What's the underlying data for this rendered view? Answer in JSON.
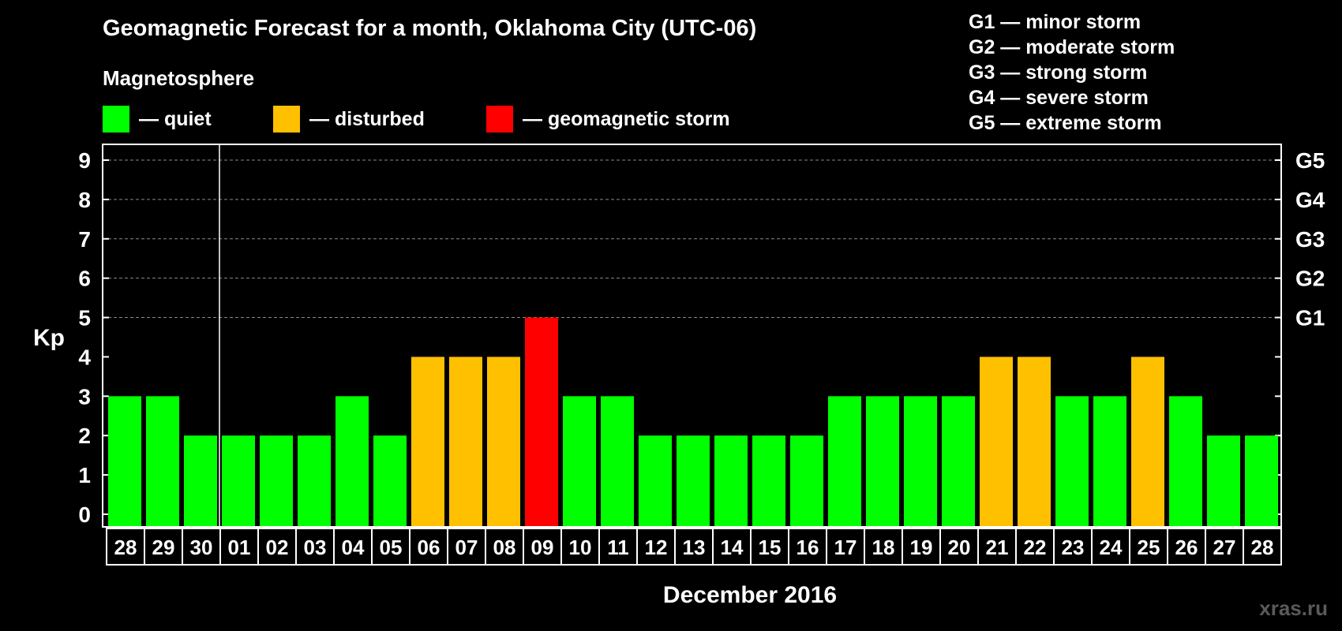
{
  "title": "Geomagnetic Forecast for a month, Oklahoma City (UTC-06)",
  "subtitle": "Magnetosphere",
  "legend": [
    {
      "label": "— quiet",
      "color": "#00ff00"
    },
    {
      "label": "— disturbed",
      "color": "#ffc000"
    },
    {
      "label": "— geomagnetic storm",
      "color": "#ff0000"
    }
  ],
  "storm_scale": [
    "G1 — minor storm",
    "G2 — moderate storm",
    "G3 — strong storm",
    "G4 — severe storm",
    "G5 — extreme storm"
  ],
  "watermark": "xras.ru",
  "chart_data": {
    "type": "bar",
    "title": "Geomagnetic Forecast for a month, Oklahoma City (UTC-06)",
    "xlabel": "December 2016",
    "ylabel": "Kp",
    "ylim": [
      0,
      9
    ],
    "yticks": [
      0,
      1,
      2,
      3,
      4,
      5,
      6,
      7,
      8,
      9
    ],
    "right_axis_labels": [
      {
        "kp": 5,
        "label": "G1"
      },
      {
        "kp": 6,
        "label": "G2"
      },
      {
        "kp": 7,
        "label": "G3"
      },
      {
        "kp": 8,
        "label": "G4"
      },
      {
        "kp": 9,
        "label": "G5"
      }
    ],
    "categories": [
      "28",
      "29",
      "30",
      "01",
      "02",
      "03",
      "04",
      "05",
      "06",
      "07",
      "08",
      "09",
      "10",
      "11",
      "12",
      "13",
      "14",
      "15",
      "16",
      "17",
      "18",
      "19",
      "20",
      "21",
      "22",
      "23",
      "24",
      "25",
      "26",
      "27",
      "28"
    ],
    "values": [
      3,
      3,
      2,
      2,
      2,
      2,
      3,
      2,
      4,
      4,
      4,
      5,
      3,
      3,
      2,
      2,
      2,
      2,
      2,
      3,
      3,
      3,
      3,
      4,
      4,
      3,
      3,
      4,
      3,
      2,
      2
    ],
    "month_separator_after_index": 2,
    "color_rules": {
      "quiet": "#00ff00",
      "disturbed": "#ffc000",
      "storm": "#ff0000"
    }
  }
}
